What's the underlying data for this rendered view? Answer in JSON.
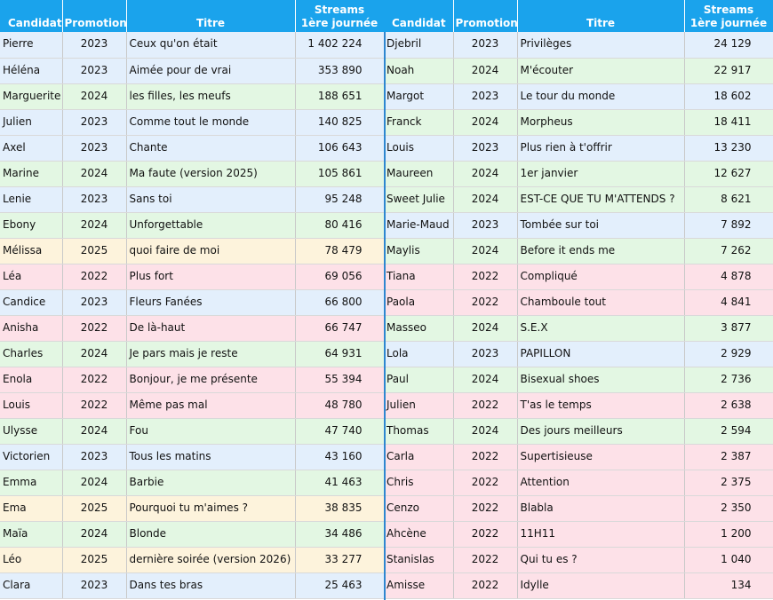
{
  "headers": {
    "candidat": "Candidat",
    "promotion": "Promotion",
    "titre": "Titre",
    "streams_line1": "Streams",
    "streams_line2": "1ère journée"
  },
  "colors": {
    "header_bg": "#1aa3ec",
    "2022": "#fde1e8",
    "2023": "#e3effc",
    "2024": "#e3f7e3",
    "2025": "#fdf3dc"
  },
  "left": [
    {
      "candidat": "Pierre",
      "promotion": "2023",
      "titre": "Ceux qu'on était",
      "streams": "1 402 224"
    },
    {
      "candidat": "Héléna",
      "promotion": "2023",
      "titre": "Aimée pour de vrai",
      "streams": "353 890"
    },
    {
      "candidat": "Marguerite",
      "promotion": "2024",
      "titre": "les filles, les meufs",
      "streams": "188 651"
    },
    {
      "candidat": "Julien",
      "promotion": "2023",
      "titre": "Comme tout le monde",
      "streams": "140 825"
    },
    {
      "candidat": "Axel",
      "promotion": "2023",
      "titre": "Chante",
      "streams": "106 643"
    },
    {
      "candidat": "Marine",
      "promotion": "2024",
      "titre": "Ma faute (version 2025)",
      "streams": "105 861"
    },
    {
      "candidat": "Lenie",
      "promotion": "2023",
      "titre": "Sans toi",
      "streams": "95 248"
    },
    {
      "candidat": "Ebony",
      "promotion": "2024",
      "titre": "Unforgettable",
      "streams": "80 416"
    },
    {
      "candidat": "Mélissa",
      "promotion": "2025",
      "titre": "quoi faire de moi",
      "streams": "78 479"
    },
    {
      "candidat": "Léa",
      "promotion": "2022",
      "titre": "Plus fort",
      "streams": "69 056"
    },
    {
      "candidat": "Candice",
      "promotion": "2023",
      "titre": "Fleurs Fanées",
      "streams": "66 800"
    },
    {
      "candidat": "Anisha",
      "promotion": "2022",
      "titre": "De là-haut",
      "streams": "66 747"
    },
    {
      "candidat": "Charles",
      "promotion": "2024",
      "titre": "Je pars mais je reste",
      "streams": "64 931"
    },
    {
      "candidat": "Enola",
      "promotion": "2022",
      "titre": "Bonjour, je me présente",
      "streams": "55 394"
    },
    {
      "candidat": "Louis",
      "promotion": "2022",
      "titre": "Même pas mal",
      "streams": "48 780"
    },
    {
      "candidat": "Ulysse",
      "promotion": "2024",
      "titre": "Fou",
      "streams": "47 740"
    },
    {
      "candidat": "Victorien",
      "promotion": "2023",
      "titre": "Tous les matins",
      "streams": "43 160"
    },
    {
      "candidat": "Emma",
      "promotion": "2024",
      "titre": "Barbie",
      "streams": "41 463"
    },
    {
      "candidat": "Ema",
      "promotion": "2025",
      "titre": "Pourquoi tu m'aimes ?",
      "streams": "38 835"
    },
    {
      "candidat": "Maïa",
      "promotion": "2024",
      "titre": "Blonde",
      "streams": "34 486"
    },
    {
      "candidat": "Léo",
      "promotion": "2025",
      "titre": "dernière soirée (version 2026)",
      "streams": "33 277"
    },
    {
      "candidat": "Clara",
      "promotion": "2023",
      "titre": "Dans tes bras",
      "streams": "25 463"
    }
  ],
  "right": [
    {
      "candidat": "Djebril",
      "promotion": "2023",
      "titre": "Privilèges",
      "streams": "24 129"
    },
    {
      "candidat": "Noah",
      "promotion": "2024",
      "titre": "M'écouter",
      "streams": "22 917"
    },
    {
      "candidat": "Margot",
      "promotion": "2023",
      "titre": "Le tour du monde",
      "streams": "18 602"
    },
    {
      "candidat": "Franck",
      "promotion": "2024",
      "titre": "Morpheus",
      "streams": "18 411"
    },
    {
      "candidat": "Louis",
      "promotion": "2023",
      "titre": "Plus rien à t'offrir",
      "streams": "13 230"
    },
    {
      "candidat": "Maureen",
      "promotion": "2024",
      "titre": "1er janvier",
      "streams": "12 627"
    },
    {
      "candidat": "Sweet Julie",
      "promotion": "2024",
      "titre": "EST-CE QUE TU M'ATTENDS ?",
      "streams": "8 621"
    },
    {
      "candidat": "Marie-Maud",
      "promotion": "2023",
      "titre": "Tombée sur toi",
      "streams": "7 892"
    },
    {
      "candidat": "Maylis",
      "promotion": "2024",
      "titre": "Before it ends me",
      "streams": "7 262"
    },
    {
      "candidat": "Tiana",
      "promotion": "2022",
      "titre": "Compliqué",
      "streams": "4 878"
    },
    {
      "candidat": "Paola",
      "promotion": "2022",
      "titre": "Chamboule tout",
      "streams": "4 841"
    },
    {
      "candidat": "Masseo",
      "promotion": "2024",
      "titre": "S.E.X",
      "streams": "3 877"
    },
    {
      "candidat": "Lola",
      "promotion": "2023",
      "titre": "PAPILLON",
      "streams": "2 929"
    },
    {
      "candidat": "Paul",
      "promotion": "2024",
      "titre": "Bisexual shoes",
      "streams": "2 736"
    },
    {
      "candidat": "Julien",
      "promotion": "2022",
      "titre": "T'as le temps",
      "streams": "2 638"
    },
    {
      "candidat": "Thomas",
      "promotion": "2024",
      "titre": "Des jours meilleurs",
      "streams": "2 594"
    },
    {
      "candidat": "Carla",
      "promotion": "2022",
      "titre": "Supertisieuse",
      "streams": "2 387"
    },
    {
      "candidat": "Chris",
      "promotion": "2022",
      "titre": "Attention",
      "streams": "2 375"
    },
    {
      "candidat": "Cenzo",
      "promotion": "2022",
      "titre": "Blabla",
      "streams": "2 350"
    },
    {
      "candidat": "Ahcène",
      "promotion": "2022",
      "titre": "11H11",
      "streams": "1 200"
    },
    {
      "candidat": "Stanislas",
      "promotion": "2022",
      "titre": "Qui tu es ?",
      "streams": "1 040"
    },
    {
      "candidat": "Amisse",
      "promotion": "2022",
      "titre": "Idylle",
      "streams": "134"
    }
  ]
}
